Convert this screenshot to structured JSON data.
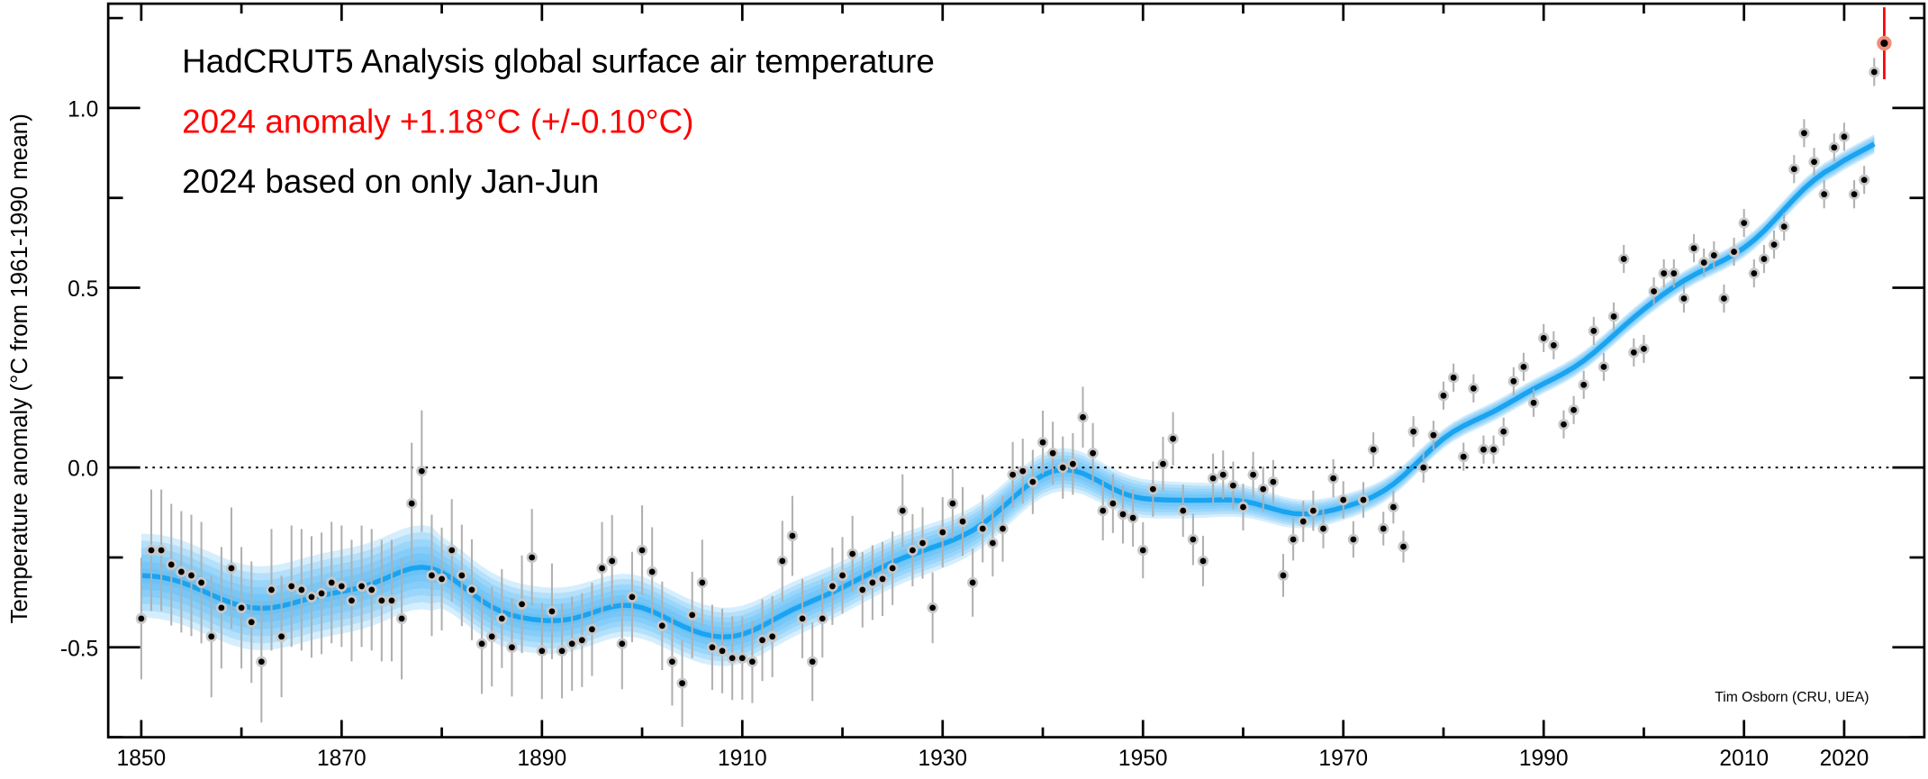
{
  "chart_data": {
    "type": "scatter",
    "title": "HadCRUT5 Analysis global surface air temperature",
    "subtitle": "2024 anomaly +1.18°C (+/-0.10°C)",
    "note": "2024 based on only Jan-Jun",
    "credit": "Tim Osborn (CRU, UEA)",
    "ylabel": "Temperature anomaly (°C from 1961-1990 mean)",
    "xlabel": "",
    "xlim": [
      1846.7,
      2028
    ],
    "ylim": [
      -0.75,
      1.29
    ],
    "xticks": [
      1850,
      1870,
      1890,
      1910,
      1930,
      1950,
      1970,
      1990,
      2010,
      2020
    ],
    "xtick_labels": [
      "1850",
      "1870",
      "1890",
      "1910",
      "1930",
      "1950",
      "1970",
      "1990",
      "2010",
      "2020"
    ],
    "yticks": [
      -0.5,
      0.0,
      0.5,
      1.0
    ],
    "ytick_labels": [
      "-0.5",
      "0.0",
      "0.5",
      "1.0"
    ],
    "reference_line": 0.0,
    "colors": {
      "points": "#000000",
      "halo": "#c8c8c8",
      "smooth": "#1aa3f0",
      "band": "#3fb2f5",
      "highlight": "#ff0000",
      "highlight_halo": "#f28c7a"
    },
    "start_year": 1850,
    "values": [
      -0.42,
      -0.23,
      -0.23,
      -0.27,
      -0.29,
      -0.3,
      -0.32,
      -0.47,
      -0.39,
      -0.28,
      -0.39,
      -0.43,
      -0.54,
      -0.34,
      -0.47,
      -0.33,
      -0.34,
      -0.36,
      -0.35,
      -0.32,
      -0.33,
      -0.37,
      -0.33,
      -0.34,
      -0.37,
      -0.37,
      -0.42,
      -0.1,
      -0.01,
      -0.3,
      -0.31,
      -0.23,
      -0.3,
      -0.34,
      -0.49,
      -0.47,
      -0.42,
      -0.5,
      -0.38,
      -0.25,
      -0.51,
      -0.4,
      -0.51,
      -0.49,
      -0.48,
      -0.45,
      -0.28,
      -0.26,
      -0.49,
      -0.36,
      -0.23,
      -0.29,
      -0.44,
      -0.54,
      -0.6,
      -0.41,
      -0.32,
      -0.5,
      -0.51,
      -0.53,
      -0.53,
      -0.54,
      -0.48,
      -0.47,
      -0.26,
      -0.19,
      -0.42,
      -0.54,
      -0.42,
      -0.33,
      -0.3,
      -0.24,
      -0.34,
      -0.32,
      -0.31,
      -0.28,
      -0.12,
      -0.23,
      -0.21,
      -0.39,
      -0.18,
      -0.1,
      -0.15,
      -0.32,
      -0.17,
      -0.21,
      -0.17,
      -0.02,
      -0.01,
      -0.04,
      0.07,
      0.04,
      0.0,
      0.01,
      0.14,
      0.04,
      -0.12,
      -0.1,
      -0.13,
      -0.14,
      -0.23,
      -0.06,
      0.01,
      0.08,
      -0.12,
      -0.2,
      -0.26,
      -0.03,
      -0.02,
      -0.05,
      -0.11,
      -0.02,
      -0.06,
      -0.04,
      -0.3,
      -0.2,
      -0.15,
      -0.12,
      -0.17,
      -0.03,
      -0.09,
      -0.2,
      -0.09,
      0.05,
      -0.17,
      -0.11,
      -0.22,
      0.1,
      0.0,
      0.09,
      0.2,
      0.25,
      0.03,
      0.22,
      0.05,
      0.05,
      0.1,
      0.24,
      0.28,
      0.18,
      0.36,
      0.34,
      0.12,
      0.16,
      0.23,
      0.38,
      0.28,
      0.42,
      0.58,
      0.32,
      0.33,
      0.49,
      0.54,
      0.54,
      0.47,
      0.61,
      0.57,
      0.59,
      0.47,
      0.6,
      0.68,
      0.54,
      0.58,
      0.62,
      0.67,
      0.83,
      0.93,
      0.85,
      0.76,
      0.89,
      0.92,
      0.76,
      0.8,
      1.1,
      1.18
    ],
    "highlight": {
      "year": 2024,
      "value": 1.18,
      "uncertainty": 0.1
    }
  }
}
